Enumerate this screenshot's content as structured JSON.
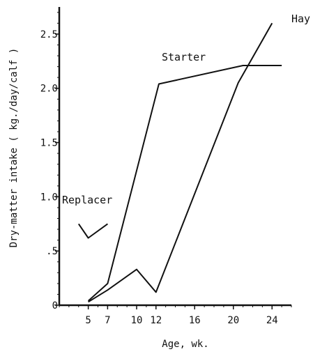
{
  "chart_data": {
    "type": "line",
    "title": "",
    "xlabel": "Age, wk.",
    "ylabel": "Dry-matter intake ( kg./day/calf )",
    "xlim": [
      2,
      26
    ],
    "ylim": [
      0,
      2.75
    ],
    "x_ticks": [
      {
        "value": 5,
        "label": "5"
      },
      {
        "value": 7,
        "label": "7"
      },
      {
        "value": 10,
        "label": "10"
      },
      {
        "value": 12,
        "label": "12"
      },
      {
        "value": 16,
        "label": "16"
      },
      {
        "value": 20,
        "label": "20"
      },
      {
        "value": 24,
        "label": "24"
      }
    ],
    "y_ticks": [
      {
        "value": 0,
        "label": "0"
      },
      {
        "value": 0.5,
        "label": ".5"
      },
      {
        "value": 1.0,
        "label": "1.0"
      },
      {
        "value": 1.5,
        "label": "1.5"
      },
      {
        "value": 2.0,
        "label": "2.0"
      },
      {
        "value": 2.5,
        "label": "2.5"
      }
    ],
    "series": [
      {
        "name": "Replacer",
        "points": [
          [
            4,
            0.75
          ],
          [
            5,
            0.62
          ],
          [
            7,
            0.75
          ]
        ]
      },
      {
        "name": "Starter",
        "points": [
          [
            5,
            0.04
          ],
          [
            7,
            0.2
          ],
          [
            12.3,
            2.04
          ],
          [
            21,
            2.21
          ],
          [
            25,
            2.21
          ]
        ]
      },
      {
        "name": "Hay",
        "points": [
          [
            5,
            0.03
          ],
          [
            7,
            0.14
          ],
          [
            10,
            0.33
          ],
          [
            12,
            0.12
          ],
          [
            20.5,
            2.05
          ],
          [
            24,
            2.6
          ]
        ]
      }
    ],
    "grid": false,
    "legend": "none"
  }
}
